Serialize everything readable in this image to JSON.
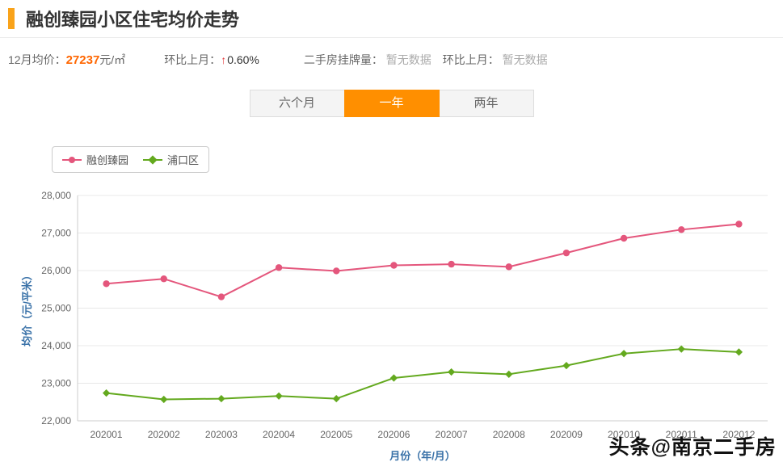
{
  "page": {
    "title": "融创臻园小区住宅均价走势",
    "watermark": "头条@南京二手房"
  },
  "stats": {
    "month_price_label": "12月均价：",
    "month_price_value": "27237",
    "month_price_unit": "元/㎡",
    "mom_label": "环比上月：",
    "mom_arrow": "↑",
    "mom_value": "0.60%",
    "listings_label": "二手房挂牌量：",
    "listings_value": "暂无数据",
    "listings_mom_label": "环比上月：",
    "listings_mom_value": "暂无数据"
  },
  "tabs": [
    {
      "label": "六个月",
      "active": false
    },
    {
      "label": "一年",
      "active": true
    },
    {
      "label": "两年",
      "active": false
    }
  ],
  "legend": [
    {
      "label": "融创臻园",
      "color": "#e4567c",
      "marker": "circle"
    },
    {
      "label": "浦口区",
      "color": "#63a91e",
      "marker": "diamond"
    }
  ],
  "colors": {
    "accent_orange": "#f9a31a",
    "active_tab_orange": "#ff8f00",
    "price_orange": "#ff6600",
    "arrow_red": "#e4393c",
    "axis_title_blue": "#3a72a8",
    "series_pink": "#e4567c",
    "series_green": "#63a91e"
  },
  "chart_data": {
    "type": "line",
    "title": "融创臻园小区住宅均价走势",
    "xlabel": "月份（年/月）",
    "ylabel": "均价（元/平米）",
    "ylim": [
      22000,
      28000
    ],
    "ytick_step": 1000,
    "grid": true,
    "legend_position": "top-left",
    "categories": [
      "202001",
      "202002",
      "202003",
      "202004",
      "202005",
      "202006",
      "202007",
      "202008",
      "202009",
      "202010",
      "202011",
      "202012"
    ],
    "series": [
      {
        "name": "融创臻园",
        "color": "#e4567c",
        "marker": "circle",
        "values": [
          25650,
          25780,
          25300,
          26080,
          25990,
          26140,
          26170,
          26100,
          26470,
          26860,
          27090,
          27237
        ]
      },
      {
        "name": "浦口区",
        "color": "#63a91e",
        "marker": "diamond",
        "values": [
          22740,
          22570,
          22590,
          22660,
          22590,
          23140,
          23300,
          23240,
          23470,
          23790,
          23910,
          23830
        ]
      }
    ]
  }
}
